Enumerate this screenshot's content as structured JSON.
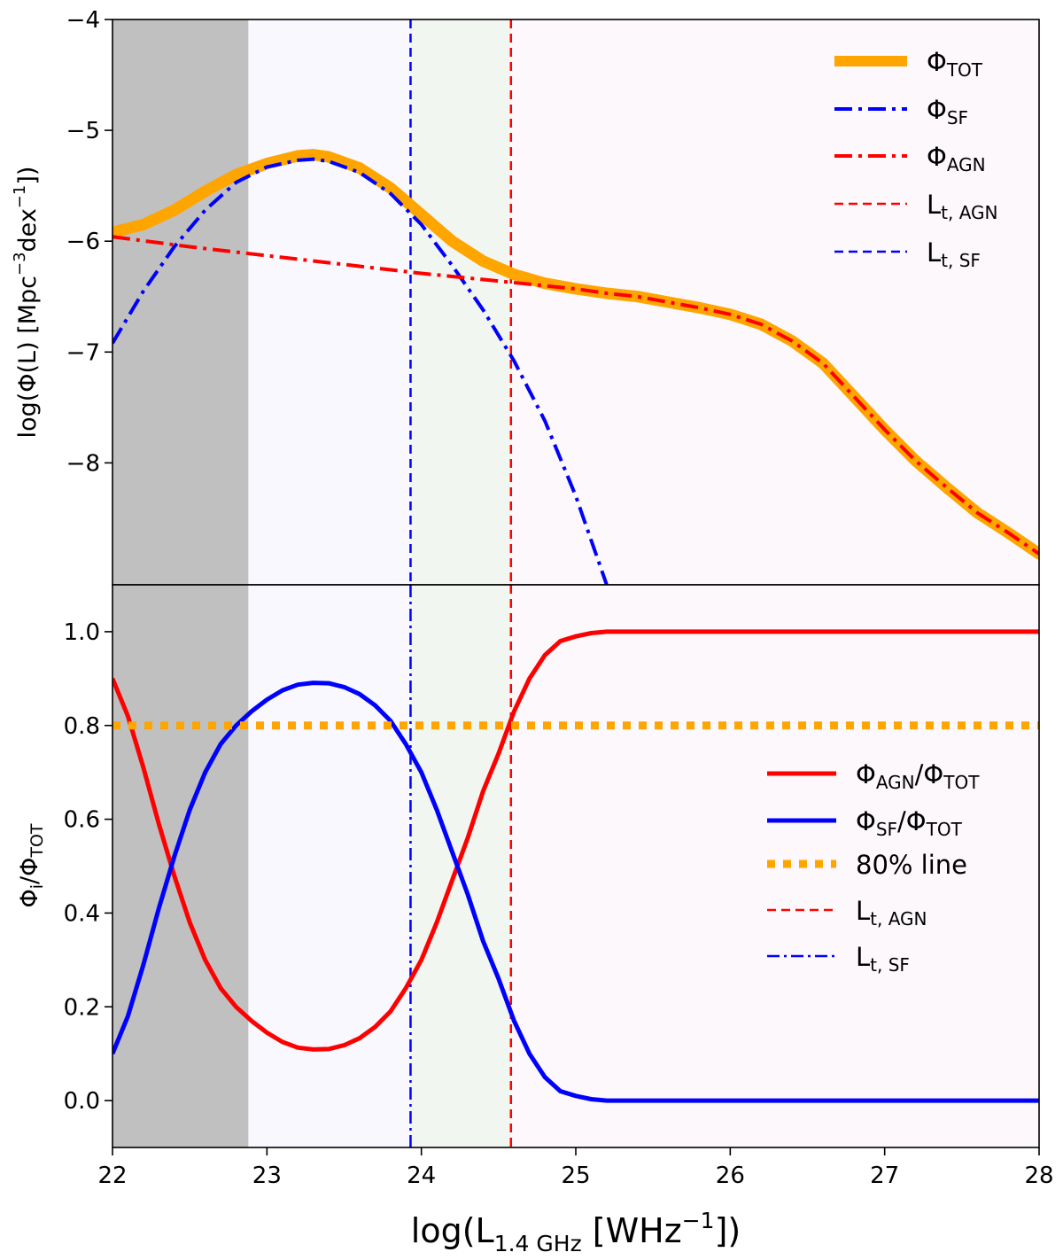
{
  "chart_data": [
    {
      "type": "line",
      "panel": "top",
      "ylabel": {
        "prefix": "log(Φ(L) [Mpc",
        "exp1": "−3",
        "mid": "dex",
        "exp2": "−1",
        "suffix": "])"
      },
      "xlim": [
        22,
        28
      ],
      "ylim": [
        -9.1,
        -4
      ],
      "yticks": [
        {
          "v": -4,
          "label": "−4"
        },
        {
          "v": -5,
          "label": "−5"
        },
        {
          "v": -6,
          "label": "−6"
        },
        {
          "v": -7,
          "label": "−7"
        },
        {
          "v": -8,
          "label": "−8"
        }
      ],
      "shaded_regions": [
        {
          "x0": 22.0,
          "x1": 22.88,
          "color": "#c0c0c0"
        },
        {
          "x0": 22.88,
          "x1": 23.93,
          "color": "#f8f8fe"
        },
        {
          "x0": 23.93,
          "x1": 24.58,
          "color": "#f2f6f1"
        },
        {
          "x0": 24.58,
          "x1": 28.0,
          "color": "#fcf8fb"
        }
      ],
      "series": [
        {
          "name": "Φ_TOT",
          "color": "#ffa500",
          "style": "solid-thick",
          "x": [
            22.0,
            22.2,
            22.4,
            22.6,
            22.8,
            23.0,
            23.2,
            23.3,
            23.4,
            23.6,
            23.8,
            24.0,
            24.2,
            24.4,
            24.6,
            24.8,
            25.0,
            25.2,
            25.4,
            25.6,
            25.8,
            26.0,
            26.2,
            26.4,
            26.6,
            26.8,
            27.0,
            27.2,
            27.4,
            27.6,
            27.8,
            28.0
          ],
          "y": [
            -5.92,
            -5.85,
            -5.72,
            -5.55,
            -5.4,
            -5.3,
            -5.23,
            -5.22,
            -5.24,
            -5.34,
            -5.52,
            -5.76,
            -6.0,
            -6.18,
            -6.3,
            -6.38,
            -6.43,
            -6.47,
            -6.5,
            -6.55,
            -6.6,
            -6.66,
            -6.75,
            -6.9,
            -7.1,
            -7.4,
            -7.7,
            -7.98,
            -8.22,
            -8.45,
            -8.63,
            -8.82
          ]
        },
        {
          "name": "Φ_SF",
          "color": "#0000ff",
          "style": "dashdot",
          "x": [
            22.0,
            22.2,
            22.4,
            22.6,
            22.8,
            23.0,
            23.2,
            23.3,
            23.4,
            23.6,
            23.8,
            24.0,
            24.2,
            24.4,
            24.6,
            24.8,
            25.0,
            25.2
          ],
          "y": [
            -6.92,
            -6.45,
            -6.05,
            -5.72,
            -5.47,
            -5.33,
            -5.27,
            -5.26,
            -5.28,
            -5.38,
            -5.57,
            -5.85,
            -6.22,
            -6.62,
            -7.08,
            -7.62,
            -8.3,
            -9.1
          ]
        },
        {
          "name": "Φ_AGN",
          "color": "#ff0000",
          "style": "dashdot",
          "x": [
            22.0,
            22.5,
            23.0,
            23.5,
            24.0,
            24.5,
            25.0,
            25.2,
            25.4,
            25.6,
            25.8,
            26.0,
            26.2,
            26.4,
            26.6,
            26.8,
            27.0,
            27.2,
            27.4,
            27.6,
            27.8,
            28.0
          ],
          "y": [
            -5.96,
            -6.05,
            -6.13,
            -6.21,
            -6.29,
            -6.36,
            -6.43,
            -6.47,
            -6.5,
            -6.55,
            -6.6,
            -6.66,
            -6.75,
            -6.9,
            -7.1,
            -7.4,
            -7.7,
            -7.98,
            -8.22,
            -8.45,
            -8.63,
            -8.82
          ]
        }
      ],
      "vlines": [
        {
          "name": "L_t,AGN",
          "x": 24.58,
          "color": "#ff0000",
          "style": "dashed"
        },
        {
          "name": "L_t,SF",
          "x": 23.93,
          "color": "#0000ff",
          "style": "dashed"
        }
      ],
      "legend": {
        "position": "top-right",
        "entries": [
          {
            "main": "Φ",
            "sub": "TOT"
          },
          {
            "main": "Φ",
            "sub": "SF"
          },
          {
            "main": "Φ",
            "sub": "AGN"
          },
          {
            "main": "L",
            "sub": "t, AGN"
          },
          {
            "main": "L",
            "sub": "t, SF"
          }
        ]
      }
    },
    {
      "type": "line",
      "panel": "bottom",
      "ylabel": {
        "p1": "Φ",
        "s1": "i",
        "p2": "/Φ",
        "s2": "TOT"
      },
      "xlabel": {
        "prefix": "log(L",
        "sub": "1.4 GHz",
        "mid": " [WHz",
        "exp": "−1",
        "suffix": "])"
      },
      "xlim": [
        22,
        28
      ],
      "ylim": [
        -0.1,
        1.1
      ],
      "xticks": [
        "22",
        "23",
        "24",
        "25",
        "26",
        "27",
        "28"
      ],
      "yticks": [
        {
          "v": 0.0,
          "label": "0.0"
        },
        {
          "v": 0.2,
          "label": "0.2"
        },
        {
          "v": 0.4,
          "label": "0.4"
        },
        {
          "v": 0.6,
          "label": "0.6"
        },
        {
          "v": 0.8,
          "label": "0.8"
        },
        {
          "v": 1.0,
          "label": "1.0"
        }
      ],
      "series": [
        {
          "name": "Φ_AGN/Φ_TOT",
          "color": "#ff0000",
          "style": "solid",
          "x": [
            22.0,
            22.1,
            22.2,
            22.3,
            22.4,
            22.5,
            22.6,
            22.7,
            22.8,
            22.9,
            23.0,
            23.1,
            23.2,
            23.3,
            23.4,
            23.5,
            23.6,
            23.7,
            23.8,
            23.9,
            24.0,
            24.1,
            24.2,
            24.3,
            24.4,
            24.5,
            24.6,
            24.7,
            24.8,
            24.9,
            25.0,
            25.1,
            25.2,
            25.4,
            25.6,
            26.0,
            27.0,
            28.0
          ],
          "y": [
            0.9,
            0.82,
            0.71,
            0.59,
            0.48,
            0.38,
            0.3,
            0.24,
            0.2,
            0.17,
            0.145,
            0.125,
            0.113,
            0.109,
            0.11,
            0.118,
            0.133,
            0.157,
            0.19,
            0.24,
            0.3,
            0.38,
            0.47,
            0.56,
            0.66,
            0.74,
            0.83,
            0.9,
            0.95,
            0.98,
            0.99,
            0.997,
            1.0,
            1.0,
            1.0,
            1.0,
            1.0,
            1.0
          ]
        },
        {
          "name": "Φ_SF/Φ_TOT",
          "color": "#0000ff",
          "style": "solid",
          "x": [
            22.0,
            22.1,
            22.2,
            22.3,
            22.4,
            22.5,
            22.6,
            22.7,
            22.8,
            22.9,
            23.0,
            23.1,
            23.2,
            23.3,
            23.4,
            23.5,
            23.6,
            23.7,
            23.8,
            23.9,
            24.0,
            24.1,
            24.2,
            24.3,
            24.4,
            24.5,
            24.6,
            24.7,
            24.8,
            24.9,
            25.0,
            25.1,
            25.2,
            25.4,
            25.6,
            26.0,
            27.0,
            28.0
          ],
          "y": [
            0.1,
            0.18,
            0.29,
            0.41,
            0.52,
            0.62,
            0.7,
            0.76,
            0.8,
            0.83,
            0.855,
            0.875,
            0.887,
            0.891,
            0.89,
            0.882,
            0.867,
            0.843,
            0.81,
            0.76,
            0.7,
            0.62,
            0.53,
            0.44,
            0.34,
            0.26,
            0.17,
            0.1,
            0.05,
            0.02,
            0.01,
            0.003,
            0.0,
            0.0,
            0.0,
            0.0,
            0.0,
            0.0
          ]
        },
        {
          "name": "80% line",
          "color": "#ffa500",
          "style": "dotted-thick",
          "x": [
            22.0,
            28.0
          ],
          "y": [
            0.8,
            0.8
          ]
        }
      ],
      "vlines": [
        {
          "name": "L_t,AGN",
          "x": 24.58,
          "color": "#ff0000",
          "style": "dashed"
        },
        {
          "name": "L_t,SF",
          "x": 23.93,
          "color": "#0000ff",
          "style": "dashdot"
        }
      ],
      "legend": {
        "position": "center-right",
        "entries": [
          {
            "a": "Φ",
            "as": "AGN",
            "b": "/Φ",
            "bs": "TOT"
          },
          {
            "a": "Φ",
            "as": "SF",
            "b": "/Φ",
            "bs": "TOT"
          },
          {
            "text": "80% line"
          },
          {
            "a": "L",
            "as": "t, AGN"
          },
          {
            "a": "L",
            "as": "t, SF"
          }
        ]
      }
    }
  ]
}
